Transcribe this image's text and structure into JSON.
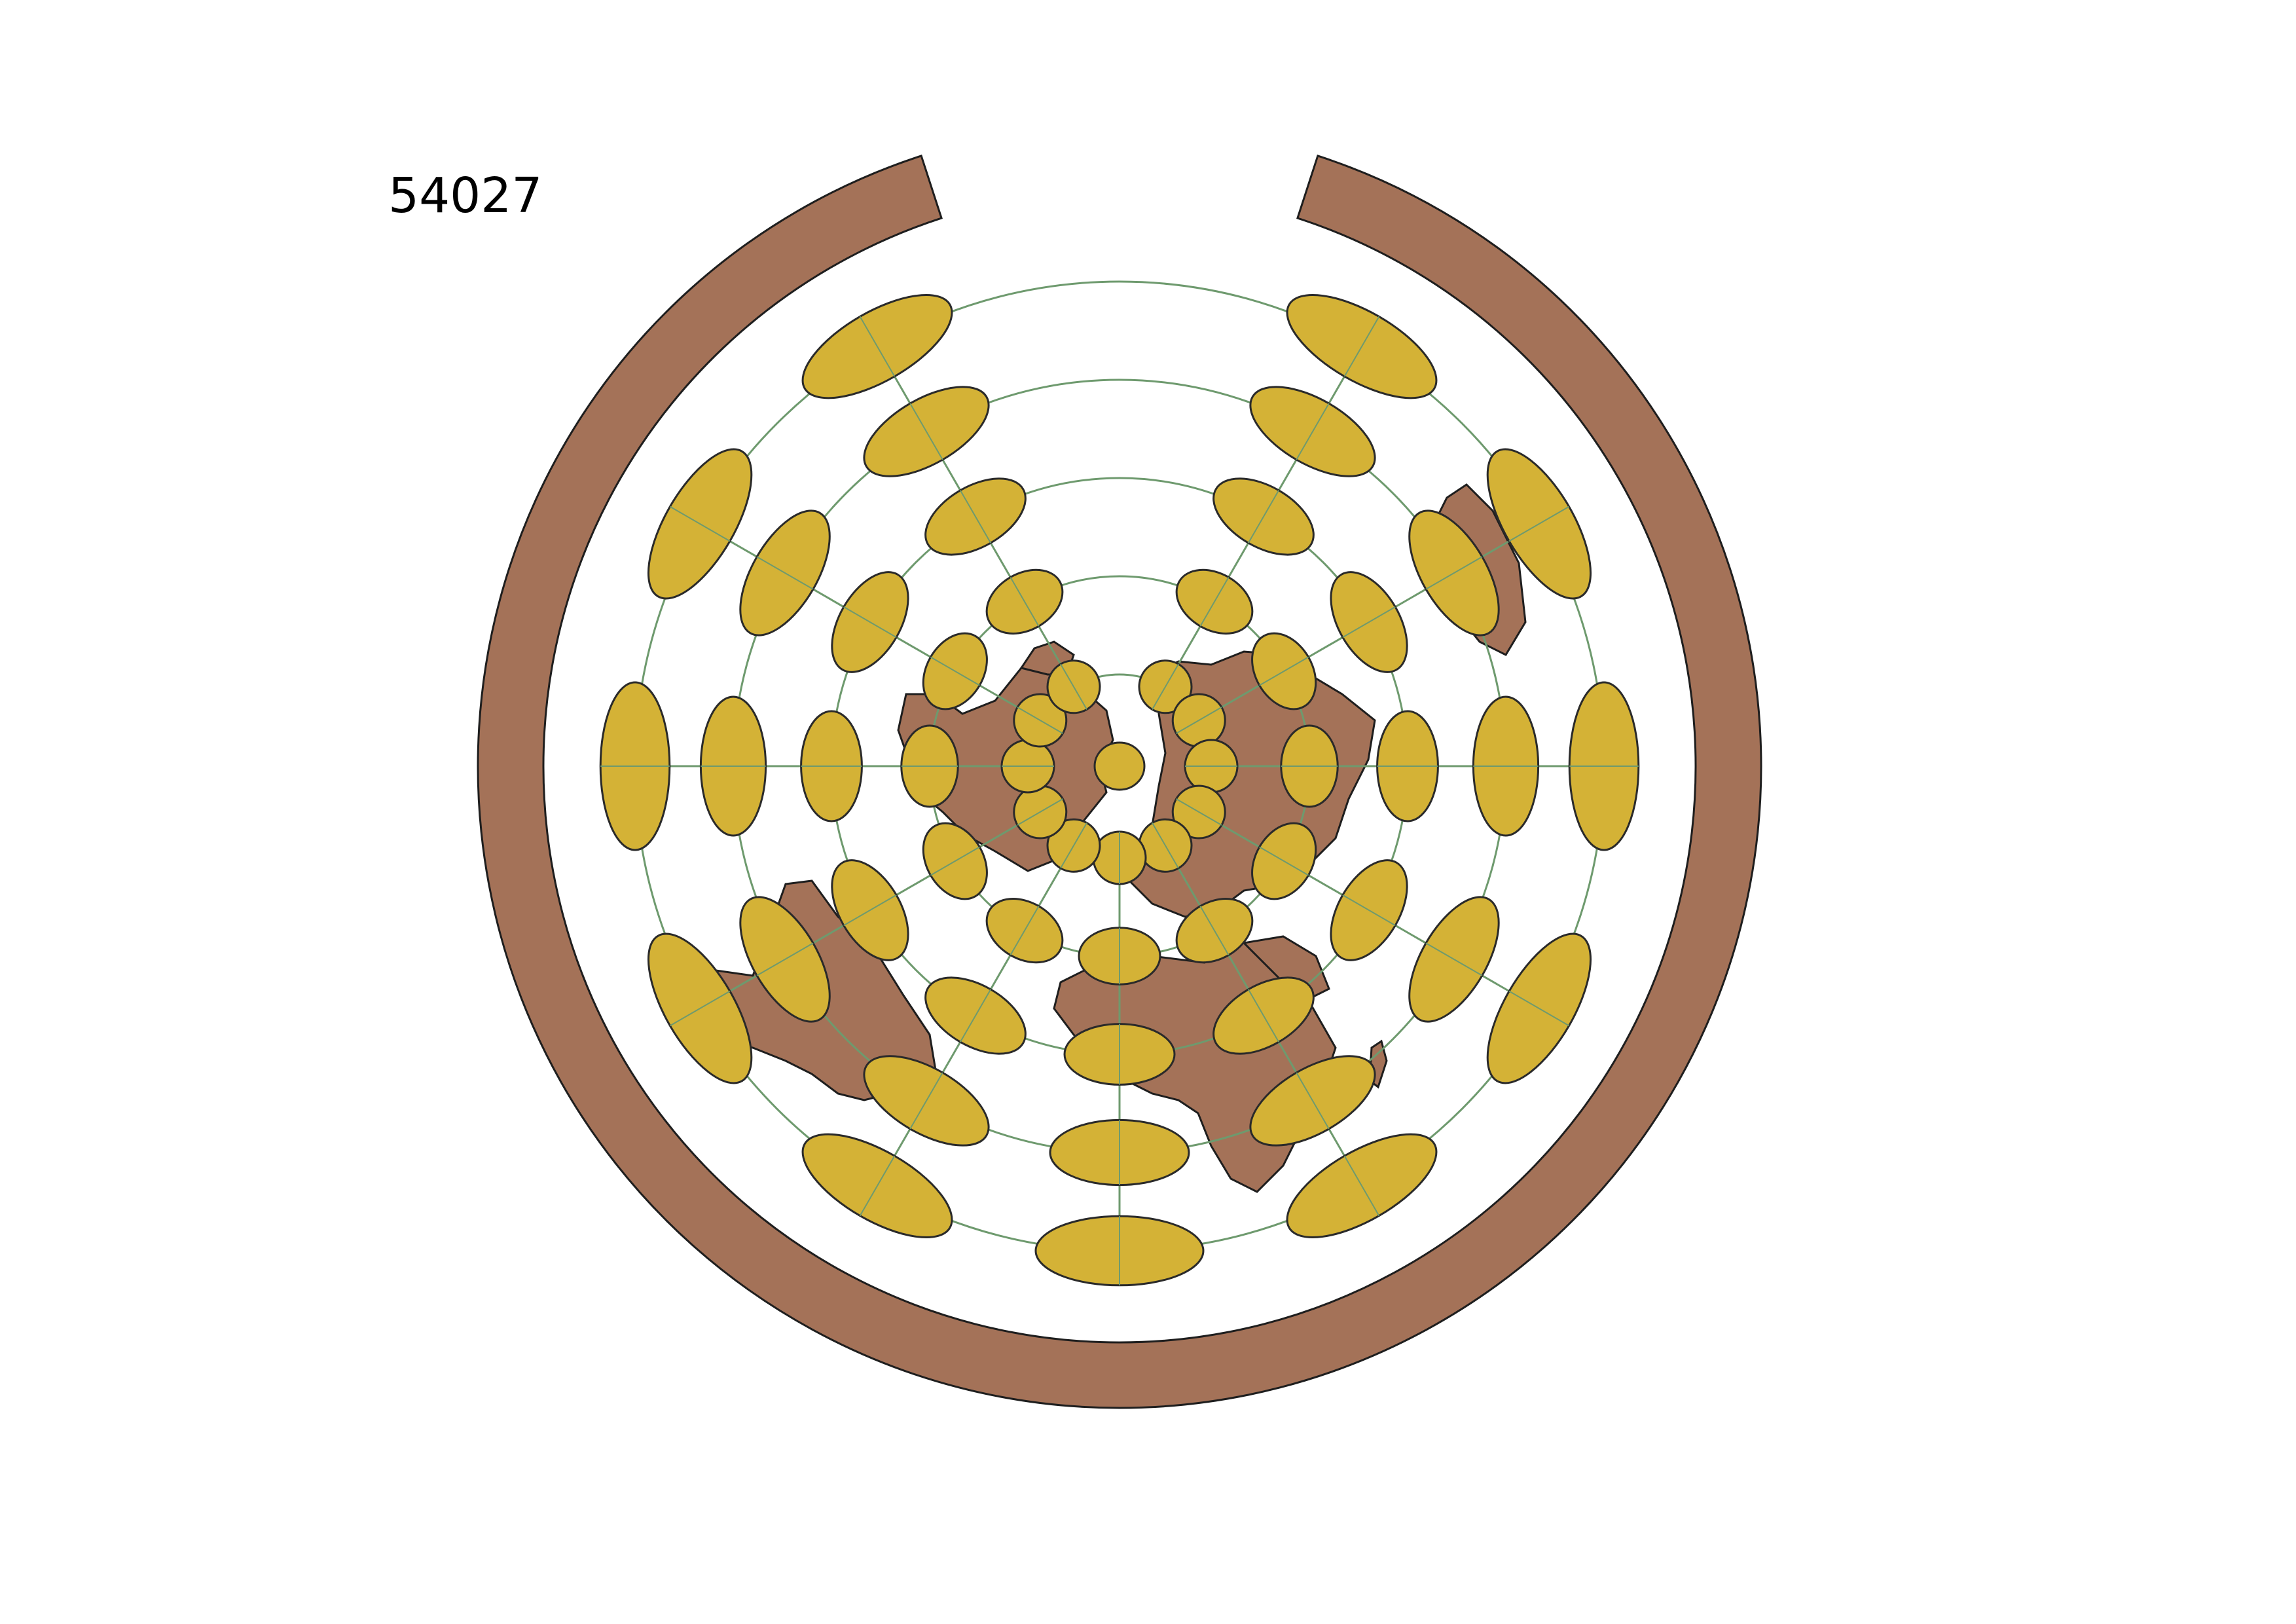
{
  "title": "54027",
  "colors": {
    "background": "#ffffff",
    "land": "#a47258",
    "land_outline": "#1e1e1e",
    "ellipse_fill": "#d4b236",
    "ellipse_outline": "#2a2a2a",
    "graticule": "#6e9a6e"
  },
  "legend": null
}
